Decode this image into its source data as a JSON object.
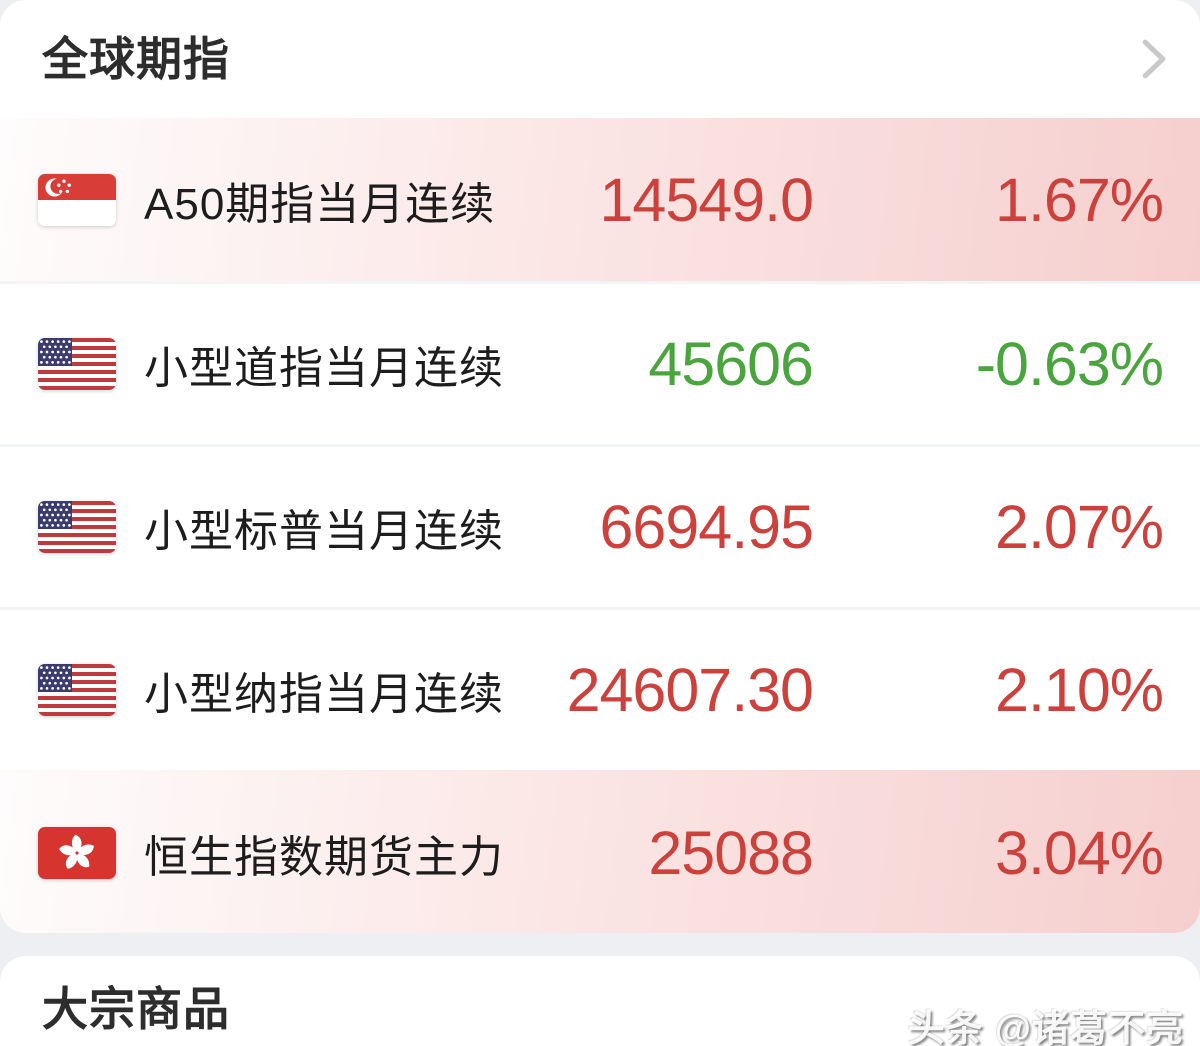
{
  "sections": {
    "global_futures": {
      "title": "全球期指"
    },
    "commodities": {
      "title": "大宗商品"
    }
  },
  "icons": {
    "header_more": "chevron-right-icon",
    "flags_used": [
      "singapore-flag-icon",
      "usa-flag-icon",
      "hong-kong-flag-icon"
    ]
  },
  "colors": {
    "up_red": "#cc413c",
    "down_green": "#4aa53f",
    "highlight_pink": "#f5cfce"
  },
  "watermark": {
    "text": "头条 @诸葛不亮"
  },
  "rows": [
    {
      "flag": "singapore",
      "name": "A50期指当月连续",
      "value": "14549.0",
      "change": "1.67%",
      "direction": "up",
      "highlighted": true
    },
    {
      "flag": "usa",
      "name": "小型道指当月连续",
      "value": "45606",
      "change": "-0.63%",
      "direction": "down",
      "highlighted": false
    },
    {
      "flag": "usa",
      "name": "小型标普当月连续",
      "value": "6694.95",
      "change": "2.07%",
      "direction": "up",
      "highlighted": false
    },
    {
      "flag": "usa",
      "name": "小型纳指当月连续",
      "value": "24607.30",
      "change": "2.10%",
      "direction": "up",
      "highlighted": false
    },
    {
      "flag": "hong-kong",
      "name": "恒生指数期货主力",
      "value": "25088",
      "change": "3.04%",
      "direction": "up",
      "highlighted": true
    }
  ]
}
